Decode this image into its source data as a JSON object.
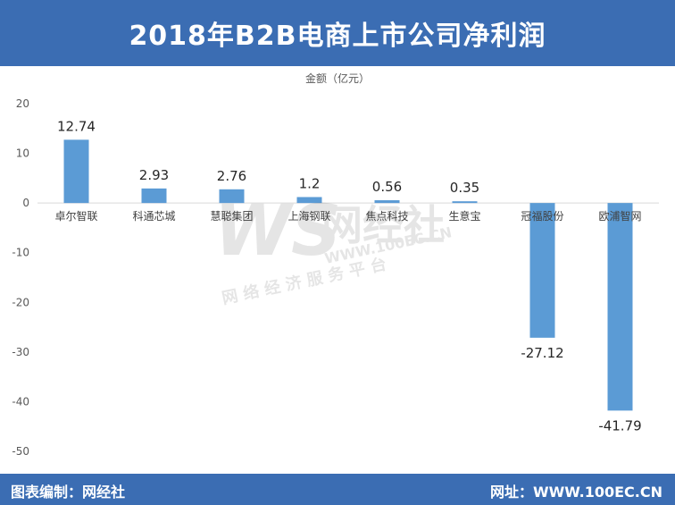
{
  "title": "2018年B2B电商上市公司净利润",
  "footer": {
    "left": "图表编制：网经社",
    "right": "网址：WWW.100EC.CN"
  },
  "watermark": {
    "main": "网经社",
    "url": "WWW.100EC.CN",
    "sub": "网 络 经 济 服 务 平 台"
  },
  "colors": {
    "header": "#3b6db3",
    "bar": "#5b9bd5",
    "grid": "#d9d9d9"
  },
  "chart_data": {
    "type": "bar",
    "ylabel": "金额（亿元）",
    "categories": [
      "卓尔智联",
      "科通芯城",
      "慧聪集团",
      "上海钢联",
      "焦点科技",
      "生意宝",
      "冠福股份",
      "欧浦智网"
    ],
    "values": [
      12.74,
      2.93,
      2.76,
      1.2,
      0.56,
      0.35,
      -27.12,
      -41.79
    ],
    "data_labels": [
      "12.74",
      "2.93",
      "2.76",
      "1.2",
      "0.56",
      "0.35",
      "-27.12",
      "-41.79"
    ],
    "ylim": [
      -50,
      20
    ],
    "yticks": [
      20,
      10,
      0,
      -10,
      -20,
      -30,
      -40,
      -50
    ],
    "grid": false,
    "legend": "none"
  }
}
